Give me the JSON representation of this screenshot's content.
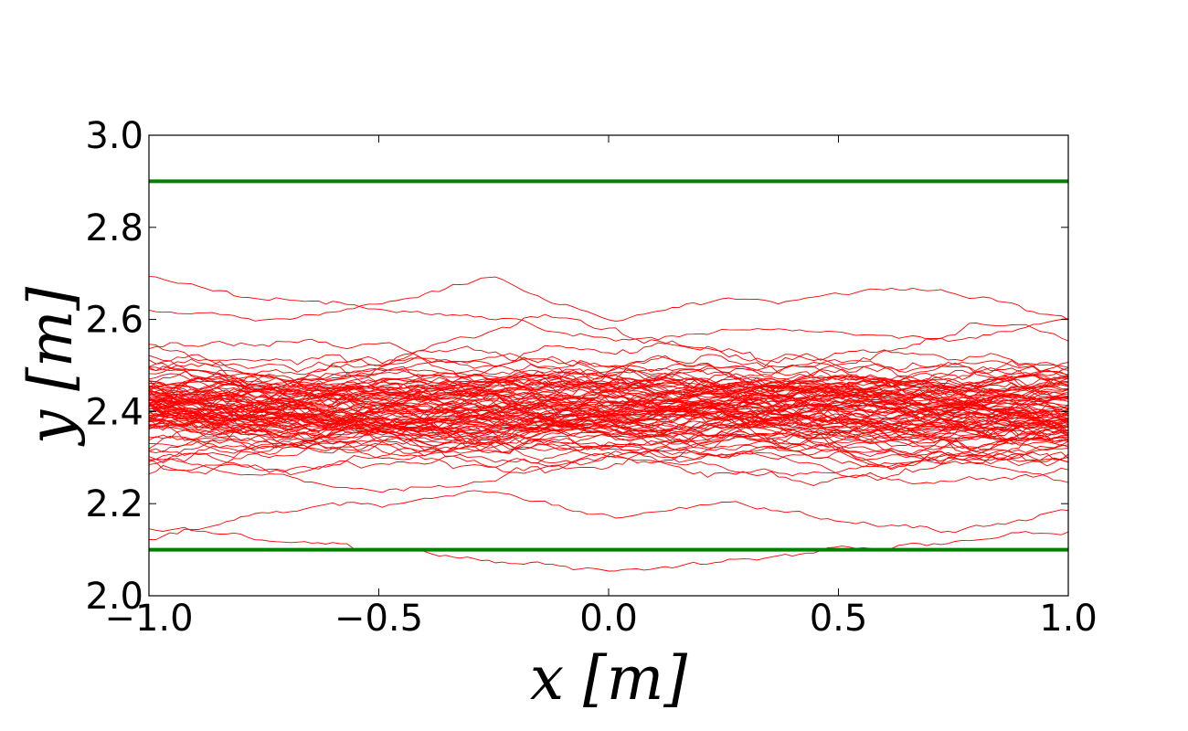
{
  "chart_data": {
    "type": "line",
    "title": "",
    "xlabel": "x [m]",
    "ylabel": "y [m]",
    "xlim": [
      -1.0,
      1.0
    ],
    "ylim": [
      2.0,
      3.0
    ],
    "x_ticks": [
      "−1.0",
      "−0.5",
      "0.0",
      "0.5",
      "1.0"
    ],
    "y_ticks": [
      "2.0",
      "2.2",
      "2.4",
      "2.6",
      "2.8",
      "3.0"
    ],
    "grid": false,
    "legend": "none",
    "colors": {
      "bounds": "#008000",
      "trajectories": "#ff0000"
    },
    "boundaries": [
      {
        "x": [
          -1.0,
          1.0
        ],
        "y": [
          2.9,
          2.9
        ]
      },
      {
        "x": [
          -1.0,
          1.0
        ],
        "y": [
          2.1,
          2.1
        ]
      }
    ],
    "trajectories": {
      "count": 100,
      "x_range": [
        -1.0,
        1.0
      ],
      "mean_y": 2.4,
      "min_y": 2.05,
      "max_y": 2.7,
      "representative_series": [
        {
          "x": [
            -1.0,
            -0.75,
            -0.5,
            -0.25,
            0.0,
            0.25,
            0.5,
            0.75,
            1.0
          ],
          "y": [
            2.7,
            2.65,
            2.62,
            2.6,
            2.56,
            2.58,
            2.57,
            2.55,
            2.6
          ]
        },
        {
          "x": [
            -1.0,
            -0.75,
            -0.5,
            -0.25,
            0.0,
            0.25,
            0.5,
            0.75,
            1.0
          ],
          "y": [
            2.62,
            2.6,
            2.64,
            2.69,
            2.6,
            2.64,
            2.66,
            2.66,
            2.6
          ]
        },
        {
          "x": [
            -1.0,
            -0.75,
            -0.5,
            -0.25,
            0.0,
            0.25,
            0.5,
            0.75,
            1.0
          ],
          "y": [
            2.45,
            2.48,
            2.42,
            2.38,
            2.44,
            2.4,
            2.36,
            2.42,
            2.38
          ]
        },
        {
          "x": [
            -1.0,
            -0.75,
            -0.5,
            -0.25,
            0.0,
            0.25,
            0.5,
            0.75,
            1.0
          ],
          "y": [
            2.38,
            2.33,
            2.36,
            2.42,
            2.35,
            2.31,
            2.38,
            2.34,
            2.4
          ]
        },
        {
          "x": [
            -1.0,
            -0.75,
            -0.5,
            -0.25,
            0.0,
            0.25,
            0.5,
            0.75,
            1.0
          ],
          "y": [
            2.3,
            2.26,
            2.22,
            2.25,
            2.3,
            2.28,
            2.26,
            2.3,
            2.25
          ]
        },
        {
          "x": [
            -1.0,
            -0.75,
            -0.5,
            -0.25,
            0.0,
            0.25,
            0.5,
            0.75,
            1.0
          ],
          "y": [
            2.15,
            2.12,
            2.1,
            2.08,
            2.06,
            2.08,
            2.1,
            2.12,
            2.14
          ]
        },
        {
          "x": [
            -1.0,
            -0.75,
            -0.5,
            -0.25,
            0.0,
            0.25,
            0.5,
            0.75,
            1.0
          ],
          "y": [
            2.12,
            2.18,
            2.2,
            2.22,
            2.18,
            2.2,
            2.16,
            2.14,
            2.18
          ]
        },
        {
          "x": [
            -1.0,
            -0.75,
            -0.5,
            -0.25,
            0.0,
            0.25,
            0.5,
            0.75,
            1.0
          ],
          "y": [
            2.5,
            2.46,
            2.5,
            2.47,
            2.42,
            2.45,
            2.48,
            2.44,
            2.5
          ]
        }
      ]
    }
  }
}
